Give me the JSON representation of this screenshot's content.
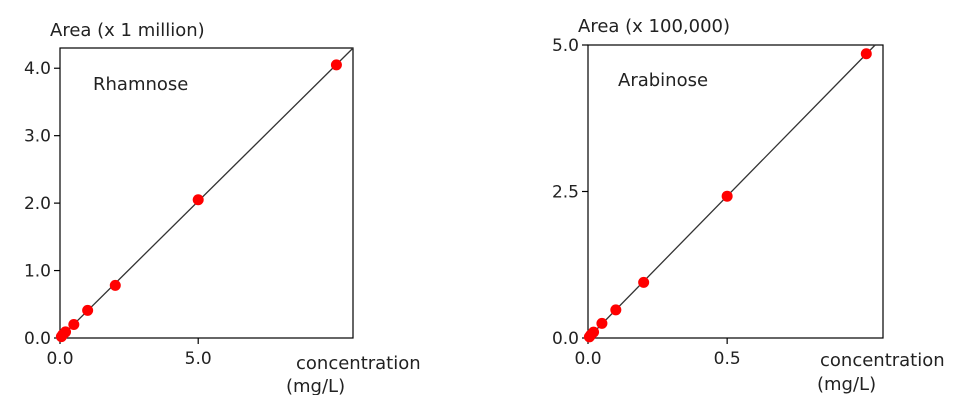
{
  "chart_data": [
    {
      "type": "scatter",
      "title": "Rhamnose",
      "ylabel": "Area (x 1 million)",
      "xlabel": "concentration",
      "xlabel_unit": "(mg/L)",
      "xlim": [
        0,
        10.6
      ],
      "ylim": [
        0,
        4.3
      ],
      "xticks": [
        0,
        5
      ],
      "xtick_labels": [
        "0.0",
        "5.0"
      ],
      "yticks": [
        0,
        1,
        2,
        3,
        4
      ],
      "ytick_labels": [
        "0.0",
        "1.0",
        "2.0",
        "3.0",
        "4.0"
      ],
      "grid": false,
      "fit_line": true,
      "point_color": "#ff0000",
      "line_color": "#333333",
      "series": [
        {
          "x": [
            0.05,
            0.1,
            0.2,
            0.5,
            1.0,
            2.0,
            5.0,
            10.0
          ],
          "y": [
            0.02,
            0.05,
            0.09,
            0.2,
            0.41,
            0.78,
            2.05,
            4.05
          ]
        }
      ]
    },
    {
      "type": "scatter",
      "title": "Arabinose",
      "ylabel": "Area (x 100,000)",
      "xlabel": "concentration",
      "xlabel_unit": "(mg/L)",
      "xlim": [
        0,
        1.06
      ],
      "ylim": [
        0,
        5.0
      ],
      "xticks": [
        0,
        0.5
      ],
      "xtick_labels": [
        "0.0",
        "0.5"
      ],
      "yticks": [
        0,
        2.5,
        5.0
      ],
      "ytick_labels": [
        "0.0",
        "2.5",
        "5.0"
      ],
      "grid": false,
      "fit_line": true,
      "point_color": "#ff0000",
      "line_color": "#333333",
      "series": [
        {
          "x": [
            0.005,
            0.01,
            0.02,
            0.05,
            0.1,
            0.2,
            0.5,
            1.0
          ],
          "y": [
            0.02,
            0.05,
            0.1,
            0.25,
            0.48,
            0.95,
            2.42,
            4.85
          ]
        }
      ]
    }
  ]
}
